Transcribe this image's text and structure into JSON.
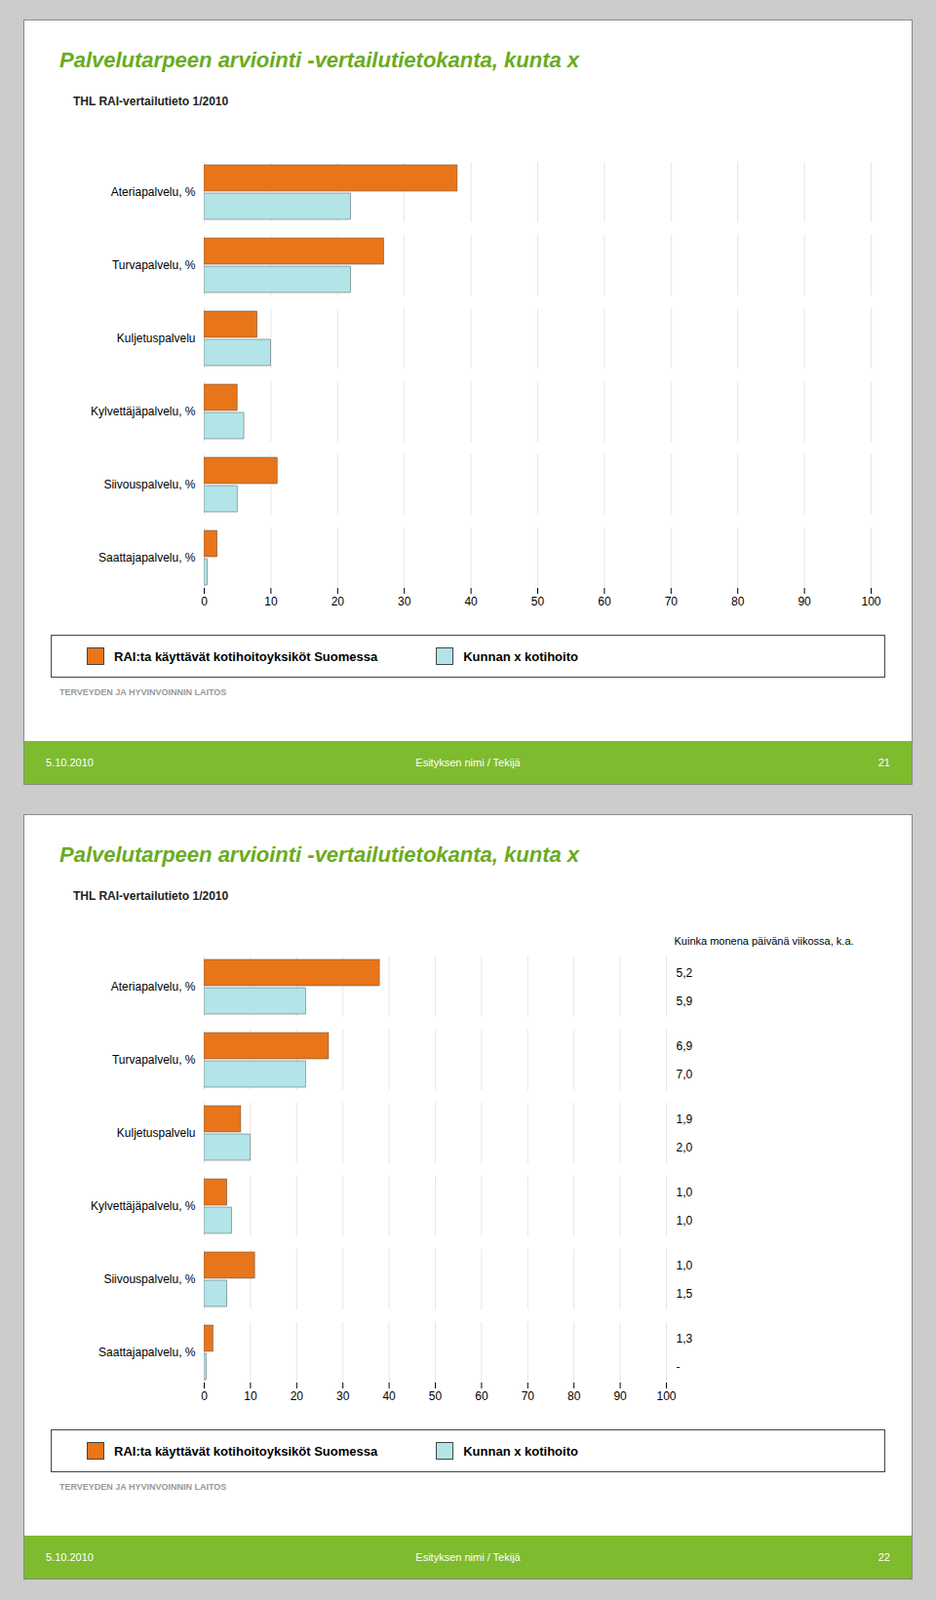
{
  "chart_data": [
    {
      "type": "bar",
      "orientation": "horizontal",
      "title": "Palvelutarpeen arviointi -vertailutietokanta, kunta x",
      "subtitle": "THL RAI-vertailutieto 1/2010",
      "categories": [
        "Ateriapalvelu, %",
        "Turvapalvelu, %",
        "Kuljetuspalvelu",
        "Kylvettäjäpalvelu, %",
        "Siivouspalvelu, %",
        "Saattajapalvelu, %"
      ],
      "series": [
        {
          "name": "RAI:ta käyttävät kotihoitoyksiköt Suomessa",
          "color": "#E8751A",
          "values": [
            38,
            27,
            8,
            5,
            11,
            2
          ]
        },
        {
          "name": "Kunnan x kotihoito",
          "color": "#B2E4E8",
          "values": [
            22,
            22,
            10,
            6,
            5,
            0.5
          ]
        }
      ],
      "xlim": [
        0,
        100
      ],
      "xticks": [
        0,
        10,
        20,
        30,
        40,
        50,
        60,
        70,
        80,
        90,
        100
      ],
      "grid": true,
      "legend": "bottom",
      "annotations": [
        "5.10.2010",
        "Esityksen nimi / Tekijä",
        "21",
        "TERVEYDEN JA HYVINVOINNIN LAITOS"
      ]
    },
    {
      "type": "bar",
      "orientation": "horizontal",
      "title": "Palvelutarpeen arviointi -vertailutietokanta, kunta x",
      "subtitle": "THL RAI-vertailutieto 1/2010",
      "categories": [
        "Ateriapalvelu, %",
        "Turvapalvelu, %",
        "Kuljetuspalvelu",
        "Kylvettäjäpalvelu, %",
        "Siivouspalvelu, %",
        "Saattajapalvelu, %"
      ],
      "series": [
        {
          "name": "RAI:ta käyttävät kotihoitoyksiköt Suomessa",
          "color": "#E8751A",
          "values": [
            38,
            27,
            8,
            5,
            11,
            2
          ],
          "annotations": [
            "5,2",
            "6,9",
            "1,9",
            "1,0",
            "1,0",
            "1,3"
          ]
        },
        {
          "name": "Kunnan x kotihoito",
          "color": "#B2E4E8",
          "values": [
            22,
            22,
            10,
            6,
            5,
            0.5
          ],
          "annotations": [
            "5,9",
            "7,0",
            "2,0",
            "1,0",
            "1,5",
            "-"
          ]
        }
      ],
      "annotation_title": "Kuinka monena päivänä viikossa, k.a.",
      "xlim": [
        0,
        100
      ],
      "xticks": [
        0,
        10,
        20,
        30,
        40,
        50,
        60,
        70,
        80,
        90,
        100
      ],
      "grid": true,
      "legend": "bottom",
      "annotations": [
        "5.10.2010",
        "Esityksen nimi / Tekijä",
        "22",
        "TERVEYDEN JA HYVINVOINNIN LAITOS"
      ]
    }
  ]
}
